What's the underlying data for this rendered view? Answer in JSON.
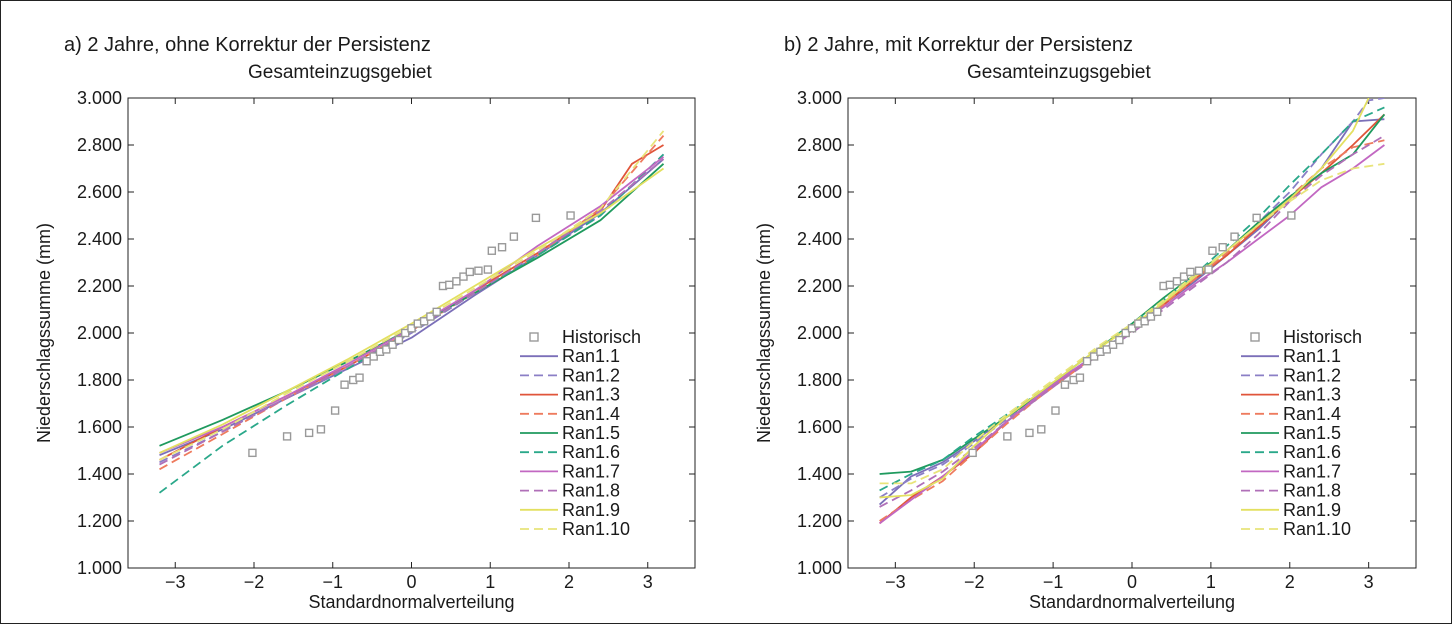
{
  "figure": {
    "border": "#222222"
  },
  "chart_data": [
    {
      "panel_title": "a) 2 Jahre, ohne Korrektur der Persistenz",
      "title": "Gesamteinzugsgebiet",
      "type": "line",
      "xlabel": "Standardnormalverteilung",
      "ylabel": "Niederschlagssumme (mm)",
      "xlim": [
        -3.6,
        3.6
      ],
      "ylim": [
        1000,
        3000
      ],
      "xticks": [
        "−3",
        "−2",
        "−1",
        "0",
        "1",
        "2",
        "3"
      ],
      "yticks": [
        "1.000",
        "1.200",
        "1.400",
        "1.600",
        "1.800",
        "2.000",
        "2.200",
        "2.400",
        "2.600",
        "2.800",
        "3.000"
      ],
      "legend_position": "bottom-right",
      "historisch": {
        "name": "Historisch",
        "color": "#999999",
        "x": [
          -2.02,
          -1.58,
          -1.3,
          -1.15,
          -0.97,
          -0.85,
          -0.74,
          -0.66,
          -0.57,
          -0.48,
          -0.4,
          -0.32,
          -0.24,
          -0.16,
          -0.08,
          0.0,
          0.08,
          0.16,
          0.24,
          0.32,
          0.4,
          0.48,
          0.57,
          0.66,
          0.74,
          0.85,
          0.97,
          1.02,
          1.15,
          1.3,
          1.58,
          2.02
        ],
        "y": [
          1490,
          1560,
          1575,
          1590,
          1670,
          1780,
          1800,
          1810,
          1880,
          1900,
          1920,
          1930,
          1950,
          1970,
          2000,
          2020,
          2040,
          2050,
          2070,
          2090,
          2200,
          2205,
          2220,
          2240,
          2260,
          2265,
          2270,
          2350,
          2365,
          2410,
          2490,
          2500
        ]
      },
      "series": [
        {
          "name": "Ran1.1",
          "color": "#7b6fb8",
          "dash": false,
          "x": [
            -3.2,
            -2.4,
            -1.6,
            -0.8,
            0.0,
            0.8,
            1.6,
            2.4,
            3.2
          ],
          "y": [
            1480,
            1590,
            1720,
            1850,
            1980,
            2160,
            2330,
            2510,
            2740
          ]
        },
        {
          "name": "Ran1.2",
          "color": "#8b7fc6",
          "dash": true,
          "x": [
            -3.2,
            -2.4,
            -1.6,
            -0.8,
            0.0,
            0.8,
            1.6,
            2.4,
            3.2
          ],
          "y": [
            1450,
            1580,
            1720,
            1850,
            2000,
            2170,
            2330,
            2500,
            2760
          ]
        },
        {
          "name": "Ran1.3",
          "color": "#e0553a",
          "dash": false,
          "x": [
            -3.2,
            -2.4,
            -1.6,
            -0.8,
            0.0,
            0.8,
            1.6,
            2.4,
            2.8,
            3.2
          ],
          "y": [
            1460,
            1600,
            1730,
            1860,
            2010,
            2180,
            2340,
            2520,
            2720,
            2800
          ]
        },
        {
          "name": "Ran1.4",
          "color": "#ee7b5e",
          "dash": true,
          "x": [
            -3.2,
            -2.4,
            -1.6,
            -0.8,
            0.0,
            0.8,
            1.6,
            2.4,
            3.2
          ],
          "y": [
            1420,
            1570,
            1720,
            1860,
            2010,
            2170,
            2330,
            2530,
            2840
          ]
        },
        {
          "name": "Ran1.5",
          "color": "#1f9a5e",
          "dash": false,
          "x": [
            -3.2,
            -2.4,
            -1.6,
            -0.8,
            0.0,
            0.8,
            1.6,
            2.4,
            3.2
          ],
          "y": [
            1520,
            1630,
            1750,
            1880,
            2020,
            2170,
            2320,
            2480,
            2720
          ]
        },
        {
          "name": "Ran1.6",
          "color": "#2aa88a",
          "dash": true,
          "x": [
            -3.2,
            -2.4,
            -1.6,
            -0.8,
            0.0,
            0.8,
            1.6,
            2.4,
            3.2
          ],
          "y": [
            1320,
            1520,
            1690,
            1850,
            2010,
            2170,
            2330,
            2500,
            2760
          ]
        },
        {
          "name": "Ran1.7",
          "color": "#c268c2",
          "dash": false,
          "x": [
            -3.2,
            -2.4,
            -1.6,
            -0.8,
            0.0,
            0.8,
            1.6,
            2.4,
            3.2
          ],
          "y": [
            1490,
            1600,
            1730,
            1870,
            2020,
            2180,
            2370,
            2540,
            2750
          ]
        },
        {
          "name": "Ran1.8",
          "color": "#b070b8",
          "dash": true,
          "x": [
            -3.2,
            -2.4,
            -1.6,
            -0.8,
            0.0,
            0.8,
            1.6,
            2.4,
            3.2
          ],
          "y": [
            1440,
            1580,
            1720,
            1860,
            2010,
            2170,
            2340,
            2520,
            2740
          ]
        },
        {
          "name": "Ran1.9",
          "color": "#e3e060",
          "dash": false,
          "x": [
            -3.2,
            -2.4,
            -1.6,
            -0.8,
            0.0,
            0.8,
            1.6,
            2.4,
            3.2
          ],
          "y": [
            1490,
            1610,
            1750,
            1890,
            2040,
            2200,
            2360,
            2510,
            2700
          ]
        },
        {
          "name": "Ran1.10",
          "color": "#e8e47a",
          "dash": true,
          "x": [
            -3.2,
            -2.4,
            -1.6,
            -0.8,
            0.0,
            0.8,
            1.6,
            2.4,
            3.2
          ],
          "y": [
            1460,
            1590,
            1740,
            1880,
            2030,
            2190,
            2350,
            2530,
            2860
          ]
        }
      ]
    },
    {
      "panel_title": "b) 2 Jahre, mit Korrektur der Persistenz",
      "title": "Gesamteinzugsgebiet",
      "type": "line",
      "xlabel": "Standardnormalverteilung",
      "ylabel": "Niederschlagssumme (mm)",
      "xlim": [
        -3.6,
        3.6
      ],
      "ylim": [
        1000,
        3000
      ],
      "xticks": [
        "−3",
        "−2",
        "−1",
        "0",
        "1",
        "2",
        "3"
      ],
      "yticks": [
        "1.000",
        "1.200",
        "1.400",
        "1.600",
        "1.800",
        "2.000",
        "2.200",
        "2.400",
        "2.600",
        "2.800",
        "3.000"
      ],
      "legend_position": "bottom-right",
      "historisch": {
        "name": "Historisch",
        "color": "#999999",
        "x": [
          -2.02,
          -1.58,
          -1.3,
          -1.15,
          -0.97,
          -0.85,
          -0.74,
          -0.66,
          -0.57,
          -0.48,
          -0.4,
          -0.32,
          -0.24,
          -0.16,
          -0.08,
          0.0,
          0.08,
          0.16,
          0.24,
          0.32,
          0.4,
          0.48,
          0.57,
          0.66,
          0.74,
          0.85,
          0.97,
          1.02,
          1.15,
          1.3,
          1.58,
          2.02
        ],
        "y": [
          1490,
          1560,
          1575,
          1590,
          1670,
          1780,
          1800,
          1810,
          1880,
          1900,
          1920,
          1930,
          1950,
          1970,
          2000,
          2020,
          2040,
          2050,
          2070,
          2090,
          2200,
          2205,
          2220,
          2240,
          2260,
          2265,
          2270,
          2350,
          2365,
          2410,
          2490,
          2500
        ]
      },
      "series": [
        {
          "name": "Ran1.1",
          "color": "#7b6fb8",
          "dash": false,
          "x": [
            -3.2,
            -2.8,
            -2.4,
            -2.0,
            -1.6,
            -1.2,
            -0.8,
            -0.4,
            0.0,
            0.4,
            0.8,
            1.2,
            1.6,
            2.0,
            2.4,
            2.8,
            3.2
          ],
          "y": [
            1270,
            1390,
            1450,
            1540,
            1640,
            1730,
            1830,
            1920,
            2010,
            2120,
            2220,
            2330,
            2440,
            2570,
            2700,
            2900,
            2910
          ]
        },
        {
          "name": "Ran1.2",
          "color": "#8b7fc6",
          "dash": true,
          "x": [
            -3.2,
            -2.8,
            -2.4,
            -2.0,
            -1.6,
            -1.2,
            -0.8,
            -0.4,
            0.0,
            0.4,
            0.8,
            1.2,
            1.6,
            2.0,
            2.4,
            2.8,
            3.0,
            3.2
          ],
          "y": [
            1300,
            1380,
            1440,
            1530,
            1630,
            1730,
            1830,
            1920,
            2020,
            2130,
            2230,
            2340,
            2470,
            2600,
            2760,
            2900,
            2990,
            3000
          ]
        },
        {
          "name": "Ran1.3",
          "color": "#e0553a",
          "dash": false,
          "x": [
            -3.2,
            -2.8,
            -2.4,
            -2.0,
            -1.6,
            -1.2,
            -0.8,
            -0.4,
            0.0,
            0.4,
            0.8,
            1.2,
            1.6,
            2.0,
            2.4,
            2.8,
            3.2
          ],
          "y": [
            1190,
            1300,
            1390,
            1490,
            1620,
            1730,
            1820,
            1920,
            2010,
            2120,
            2230,
            2330,
            2450,
            2570,
            2680,
            2800,
            2930
          ]
        },
        {
          "name": "Ran1.4",
          "color": "#ee7b5e",
          "dash": true,
          "x": [
            -3.2,
            -2.8,
            -2.4,
            -2.0,
            -1.6,
            -1.2,
            -0.8,
            -0.4,
            0.0,
            0.4,
            0.8,
            1.2,
            1.6,
            2.0,
            2.4,
            2.8,
            3.2
          ],
          "y": [
            1200,
            1290,
            1370,
            1490,
            1610,
            1720,
            1820,
            1920,
            2010,
            2120,
            2230,
            2340,
            2460,
            2580,
            2700,
            2790,
            2820
          ]
        },
        {
          "name": "Ran1.5",
          "color": "#1f9a5e",
          "dash": false,
          "x": [
            -3.2,
            -2.8,
            -2.4,
            -2.0,
            -1.6,
            -1.2,
            -0.8,
            -0.4,
            0.0,
            0.4,
            0.8,
            1.2,
            1.6,
            2.0,
            2.4,
            2.8,
            3.2
          ],
          "y": [
            1400,
            1410,
            1460,
            1550,
            1640,
            1730,
            1840,
            1940,
            2040,
            2150,
            2250,
            2350,
            2470,
            2580,
            2680,
            2760,
            2930
          ]
        },
        {
          "name": "Ran1.6",
          "color": "#2aa88a",
          "dash": true,
          "x": [
            -3.2,
            -2.8,
            -2.4,
            -2.0,
            -1.6,
            -1.2,
            -0.8,
            -0.4,
            0.0,
            0.4,
            0.8,
            1.2,
            1.6,
            2.0,
            2.4,
            2.8,
            3.2
          ],
          "y": [
            1330,
            1400,
            1460,
            1560,
            1650,
            1740,
            1840,
            1940,
            2040,
            2140,
            2250,
            2370,
            2490,
            2630,
            2760,
            2900,
            2960
          ]
        },
        {
          "name": "Ran1.7",
          "color": "#c268c2",
          "dash": false,
          "x": [
            -3.2,
            -2.8,
            -2.4,
            -2.0,
            -1.6,
            -1.2,
            -0.8,
            -0.4,
            0.0,
            0.4,
            0.8,
            1.2,
            1.6,
            2.0,
            2.4,
            2.8,
            3.2
          ],
          "y": [
            1190,
            1290,
            1390,
            1500,
            1620,
            1730,
            1830,
            1920,
            2010,
            2110,
            2210,
            2300,
            2400,
            2500,
            2620,
            2700,
            2800
          ]
        },
        {
          "name": "Ran1.8",
          "color": "#b070b8",
          "dash": true,
          "x": [
            -3.2,
            -2.8,
            -2.4,
            -2.0,
            -1.6,
            -1.2,
            -0.8,
            -0.4,
            0.0,
            0.4,
            0.8,
            1.2,
            1.6,
            2.0,
            2.4,
            2.8,
            3.2
          ],
          "y": [
            1260,
            1330,
            1410,
            1510,
            1620,
            1720,
            1820,
            1910,
            2000,
            2100,
            2200,
            2300,
            2420,
            2560,
            2670,
            2760,
            2840
          ]
        },
        {
          "name": "Ran1.9",
          "color": "#e3e060",
          "dash": false,
          "x": [
            -3.2,
            -2.8,
            -2.4,
            -2.0,
            -1.6,
            -1.2,
            -0.8,
            -0.4,
            0.0,
            0.4,
            0.8,
            1.2,
            1.6,
            2.0,
            2.4,
            2.8,
            3.0
          ],
          "y": [
            1300,
            1310,
            1380,
            1520,
            1640,
            1740,
            1840,
            1940,
            2030,
            2130,
            2240,
            2350,
            2460,
            2570,
            2700,
            2860,
            3000
          ]
        },
        {
          "name": "Ran1.10",
          "color": "#e8e47a",
          "dash": true,
          "x": [
            -3.2,
            -2.8,
            -2.4,
            -2.0,
            -1.6,
            -1.2,
            -0.8,
            -0.4,
            0.0,
            0.4,
            0.8,
            1.2,
            1.6,
            2.0,
            2.4,
            2.8,
            3.2
          ],
          "y": [
            1360,
            1360,
            1420,
            1540,
            1650,
            1750,
            1850,
            1950,
            2040,
            2140,
            2250,
            2350,
            2460,
            2560,
            2650,
            2700,
            2720
          ]
        }
      ]
    }
  ]
}
